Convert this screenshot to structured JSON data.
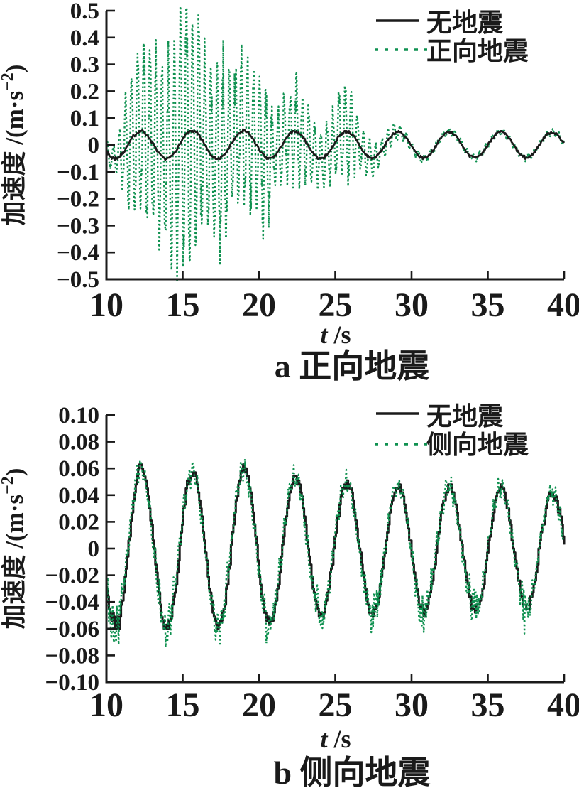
{
  "colors": {
    "black": "#1a1a1a",
    "green": "#0f9150",
    "background": "#ffffff"
  },
  "chart_data": [
    {
      "type": "line",
      "caption": "a 正向地震",
      "xlabel_var": "t",
      "xlabel_unit": " /s",
      "ylabel_main": "加速度 /(m·s",
      "ylabel_sup": "−2",
      "ylabel_close": ")",
      "xlim": [
        10,
        40
      ],
      "ylim": [
        -0.5,
        0.5
      ],
      "xticks": [
        10,
        15,
        20,
        25,
        30,
        35,
        40
      ],
      "xtick_labels": [
        "10",
        "15",
        "20",
        "25",
        "30",
        "35",
        "40"
      ],
      "ytick_values": [
        0.5,
        0.4,
        0.3,
        0.2,
        0.1,
        0,
        -0.1,
        -0.2,
        -0.3,
        -0.4,
        -0.5
      ],
      "ytick_labels": [
        "0.5",
        "0.4",
        "0.3",
        "0.2",
        "0.1",
        "0",
        "−0.1",
        "−0.2",
        "−0.3",
        "−0.4",
        "−0.5"
      ],
      "grid": false,
      "legend_position": "top-right-inside",
      "legend": [
        {
          "label": "无地震",
          "style": "solid",
          "color": "#1a1a1a"
        },
        {
          "label": "正向地震",
          "style": "dotted",
          "color": "#0f9150"
        }
      ],
      "series": [
        {
          "name": "无地震",
          "color": "#1a1a1a",
          "style": "solid",
          "width": 2.6,
          "dt": 0.05,
          "seed": 7,
          "quant": 0.004,
          "noise": 0.0045,
          "start_noise": {
            "until": 10.8,
            "factor": 1.8
          },
          "base": {
            "period": 3.37,
            "peak_time": 12.25,
            "amplitude_points": [
              [
                10,
                0.05
              ],
              [
                15,
                0.052
              ],
              [
                25,
                0.05
              ],
              [
                40,
                0.047
              ]
            ]
          }
        },
        {
          "name": "正向地震",
          "color": "#0f9150",
          "style": "dotted",
          "width": 2.4,
          "dt": 0.024,
          "seed": 13,
          "noise": 0.004,
          "base": {
            "period": 3.37,
            "peak_time": 12.25,
            "amplitude_points": [
              [
                10,
                0.05
              ],
              [
                15,
                0.052
              ],
              [
                25,
                0.05
              ],
              [
                40,
                0.047
              ]
            ]
          },
          "carrier_hz": 2.5,
          "carrier_phase": 0.8,
          "carrier_jitter": 0.3,
          "scatter": 0.18,
          "envelope_points": [
            [
              10,
              0.03
            ],
            [
              10.6,
              0.05
            ],
            [
              11,
              0.12
            ],
            [
              11.5,
              0.21
            ],
            [
              12,
              0.28
            ],
            [
              12.6,
              0.32
            ],
            [
              13,
              0.35
            ],
            [
              13.5,
              0.29
            ],
            [
              14,
              0.31
            ],
            [
              14.7,
              0.4
            ],
            [
              15.2,
              0.46
            ],
            [
              15.7,
              0.42
            ],
            [
              16.2,
              0.34
            ],
            [
              17,
              0.29
            ],
            [
              17.5,
              0.33
            ],
            [
              18.2,
              0.22
            ],
            [
              18.7,
              0.26
            ],
            [
              19.2,
              0.24
            ],
            [
              19.7,
              0.19
            ],
            [
              20.3,
              0.26
            ],
            [
              21,
              0.12
            ],
            [
              21.6,
              0.15
            ],
            [
              22.3,
              0.18
            ],
            [
              23,
              0.16
            ],
            [
              23.8,
              0.09
            ],
            [
              24.5,
              0.1
            ],
            [
              25.3,
              0.14
            ],
            [
              25.8,
              0.15
            ],
            [
              26.5,
              0.09
            ],
            [
              27.2,
              0.06
            ],
            [
              28,
              0.045
            ],
            [
              28.7,
              0.035
            ],
            [
              29.5,
              0.02
            ],
            [
              30,
              0.015
            ],
            [
              31,
              0.012
            ],
            [
              40,
              0.01
            ]
          ]
        }
      ]
    },
    {
      "type": "line",
      "caption": "b 侧向地震",
      "xlabel_var": "t",
      "xlabel_unit": " /s",
      "ylabel_main": "加速度 /(m·s",
      "ylabel_sup": "−2",
      "ylabel_close": ")",
      "xlim": [
        10,
        40
      ],
      "ylim": [
        -0.1,
        0.1
      ],
      "xticks": [
        10,
        15,
        20,
        25,
        30,
        35,
        40
      ],
      "xtick_labels": [
        "10",
        "15",
        "20",
        "25",
        "30",
        "35",
        "40"
      ],
      "ytick_values": [
        0.1,
        0.08,
        0.06,
        0.04,
        0.02,
        0,
        -0.02,
        -0.04,
        -0.06,
        -0.08,
        -0.1
      ],
      "ytick_labels": [
        "0.10",
        "0.08",
        "0.06",
        "0.04",
        "0.02",
        "0",
        "−0.02",
        "−0.04",
        "−0.06",
        "−0.08",
        "−0.10"
      ],
      "grid": false,
      "legend_position": "top-right-inside",
      "legend": [
        {
          "label": "无地震",
          "style": "solid",
          "color": "#1a1a1a"
        },
        {
          "label": "侧向地震",
          "style": "dotted",
          "color": "#0f9150"
        }
      ],
      "series": [
        {
          "name": "无地震",
          "color": "#1a1a1a",
          "style": "solid",
          "width": 3,
          "dt": 0.08,
          "seed": 21,
          "quant": 0.003,
          "noise": 0.0035,
          "render": "step",
          "start_noise": {
            "until": 10.9,
            "factor": 2.4
          },
          "base": {
            "period": 3.37,
            "peak_time": 12.25,
            "amplitude_points": [
              [
                10,
                0.058
              ],
              [
                12.3,
                0.061
              ],
              [
                15.7,
                0.057
              ],
              [
                19,
                0.06
              ],
              [
                22.4,
                0.053
              ],
              [
                25.8,
                0.049
              ],
              [
                29.2,
                0.048
              ],
              [
                32.6,
                0.046
              ],
              [
                36,
                0.046
              ],
              [
                39.5,
                0.041
              ]
            ]
          }
        },
        {
          "name": "侧向地震",
          "color": "#0f9150",
          "style": "dotted",
          "width": 2.4,
          "dt": 0.04,
          "seed": 42,
          "noise": 0.006,
          "trough_noise": 0.012,
          "start_noise": {
            "until": 11,
            "factor": 2
          },
          "base": {
            "period": 3.37,
            "peak_time": 12.25,
            "amplitude_points": [
              [
                10,
                0.058
              ],
              [
                12.3,
                0.061
              ],
              [
                15.7,
                0.057
              ],
              [
                19,
                0.06
              ],
              [
                22.4,
                0.053
              ],
              [
                25.8,
                0.049
              ],
              [
                29.2,
                0.048
              ],
              [
                32.6,
                0.046
              ],
              [
                36,
                0.046
              ],
              [
                39.5,
                0.041
              ]
            ]
          },
          "carrier_hz": 3.2,
          "carrier_phase": 0.3,
          "envelope_points": [
            [
              10,
              0.006
            ],
            [
              40,
              0.004
            ]
          ]
        }
      ]
    }
  ]
}
